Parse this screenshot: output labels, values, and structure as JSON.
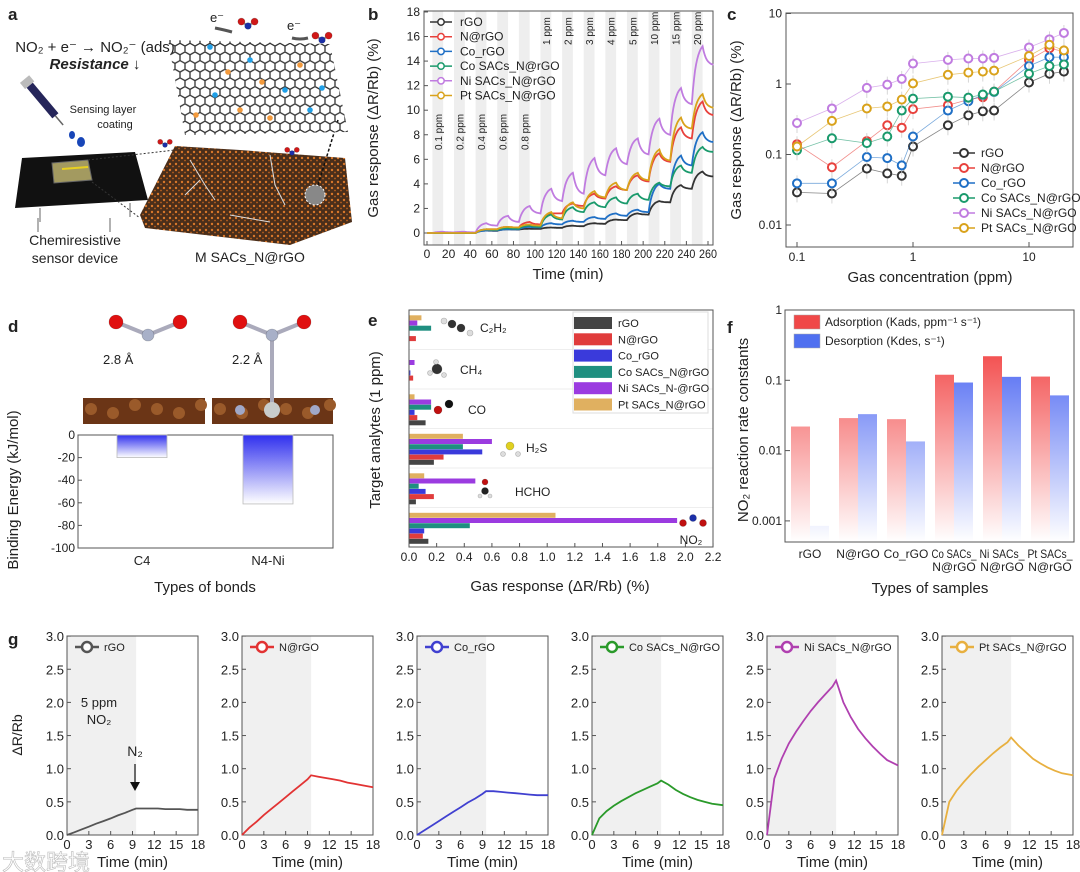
{
  "panel_labels": [
    "a",
    "b",
    "c",
    "d",
    "e",
    "f",
    "g"
  ],
  "watermark": "大数跨境",
  "illustration": {
    "equation": "NO₂ + e⁻ → NO₂⁻ (ads)",
    "resistance": "Resistance ↓",
    "syringe_label": [
      "Sensing layer",
      "coating"
    ],
    "device_label": [
      "Chemiresistive",
      "sensor device"
    ],
    "material_label": "M SACs_N@rGO",
    "electron": "e⁻"
  },
  "chart_data": [
    {
      "type": "line",
      "title": "",
      "xlabel": "Time (min)",
      "ylabel": "Gas response (ΔR/Rb) (%)",
      "xlim": [
        0,
        265
      ],
      "ylim": [
        -1,
        18
      ],
      "xticks": [
        "0",
        "20",
        "40",
        "60",
        "80",
        "100",
        "120",
        "140",
        "160",
        "180",
        "200",
        "220",
        "240",
        "260"
      ],
      "yticks": [
        "0",
        "2",
        "4",
        "6",
        "8",
        "10",
        "12",
        "14",
        "16",
        "18"
      ],
      "pulses": {
        "labels": [
          "0.1 ppm",
          "0.2 ppm",
          "0.4 ppm",
          "0.6 ppm",
          "0.8 ppm",
          "1 ppm",
          "2 ppm",
          "3 ppm",
          "4 ppm",
          "5 ppm",
          "10 ppm",
          "15 ppm",
          "20 ppm"
        ],
        "first_start_min": 5,
        "period_min": 20,
        "exposure_min": 10
      },
      "legend_position": "top-left",
      "series": [
        {
          "name": "rGO",
          "color": "#333333",
          "peak": [
            0,
            0.05,
            0.2,
            0.3,
            0.35,
            0.45,
            0.6,
            0.8,
            1.1,
            1.6,
            2.6,
            3.9,
            5.0
          ],
          "recovered": [
            0,
            0.04,
            0.18,
            0.28,
            0.33,
            0.42,
            0.55,
            0.75,
            1.05,
            1.5,
            2.5,
            3.6,
            4.6
          ]
        },
        {
          "name": "N@rGO",
          "color": "#e8413c",
          "peak": [
            0,
            0,
            0.3,
            0.5,
            0.9,
            1.6,
            2.4,
            3.2,
            3.8,
            4.7,
            6.5,
            8.6,
            10.7
          ],
          "recovered": [
            0,
            0,
            0.3,
            0.45,
            0.7,
            1.6,
            2.2,
            2.8,
            3.5,
            4.2,
            5.8,
            7.7,
            9.6
          ]
        },
        {
          "name": "Co_rGO",
          "color": "#1f6fc5",
          "peak": [
            0,
            0,
            0.2,
            0.3,
            0.5,
            0.8,
            1.0,
            1.3,
            1.6,
            1.9,
            4.0,
            6.3,
            8.2
          ],
          "recovered": [
            0,
            0,
            0.2,
            0.3,
            0.45,
            0.7,
            0.9,
            1.15,
            1.4,
            1.7,
            3.6,
            5.5,
            7.4
          ]
        },
        {
          "name": "Co SACs_N@rGO",
          "color": "#1a9a6c",
          "peak": [
            0,
            0,
            0.3,
            0.4,
            0.6,
            1.5,
            2.1,
            2.5,
            2.9,
            3.2,
            4.1,
            5.5,
            7.0
          ],
          "recovered": [
            0,
            0,
            0.25,
            0.35,
            0.5,
            1.1,
            1.7,
            2.1,
            2.4,
            2.7,
            3.8,
            4.9,
            6.6
          ]
        },
        {
          "name": "Ni SACs_N@rGO",
          "color": "#c07ce0",
          "peak": [
            0.1,
            0.1,
            0.8,
            1.4,
            2.2,
            3.6,
            4.9,
            6.1,
            6.9,
            7.7,
            9.3,
            11.8,
            15.2
          ],
          "recovered": [
            0.05,
            0.05,
            0.6,
            0.9,
            1.6,
            2.6,
            3.2,
            4.7,
            5.6,
            6.4,
            8.0,
            10.5,
            13.7
          ]
        },
        {
          "name": "Pt SACs_N@rGO",
          "color": "#d9a21b",
          "peak": [
            0,
            0,
            0.3,
            0.5,
            0.7,
            1.7,
            2.5,
            3.4,
            4.1,
            4.9,
            6.8,
            9.4,
            11.3
          ],
          "recovered": [
            0,
            0,
            0.3,
            0.45,
            0.6,
            1.2,
            2.0,
            2.9,
            3.5,
            4.3,
            5.9,
            8.5,
            10.2
          ]
        }
      ]
    },
    {
      "type": "scatter",
      "title": "",
      "xlabel": "Gas concentration (ppm)",
      "ylabel": "Gas response (ΔR/Rb) (%)",
      "xscale": "log",
      "yscale": "log",
      "xlim": [
        0.08,
        24
      ],
      "ylim": [
        0.005,
        10
      ],
      "xticks": [
        "0.1",
        "1",
        "10"
      ],
      "yticks": [
        "0.01",
        "0.1",
        "1",
        "10"
      ],
      "legend_position": "bottom-right",
      "x": [
        0.1,
        0.2,
        0.4,
        0.6,
        0.8,
        1,
        2,
        3,
        4,
        5,
        10,
        15,
        20
      ],
      "series": [
        {
          "name": "rGO",
          "color": "#333333",
          "values": [
            0.029,
            0.028,
            0.063,
            0.054,
            0.05,
            0.13,
            0.26,
            0.36,
            0.41,
            0.42,
            1.05,
            1.4,
            1.5
          ]
        },
        {
          "name": "N@rGO",
          "color": "#e8413c",
          "values": [
            0.14,
            0.066,
            0.155,
            0.26,
            0.24,
            0.44,
            0.5,
            0.6,
            0.65,
            0.78,
            2.2,
            3.2,
            2.9
          ]
        },
        {
          "name": "Co_rGO",
          "color": "#1f6fc5",
          "values": [
            0.039,
            0.039,
            0.092,
            0.089,
            0.07,
            0.18,
            0.42,
            0.57,
            0.7,
            0.77,
            1.8,
            2.4,
            2.4
          ]
        },
        {
          "name": "Co SACs_N@rGO",
          "color": "#1a9a6c",
          "values": [
            0.115,
            0.17,
            0.145,
            0.18,
            0.42,
            0.62,
            0.66,
            0.64,
            0.71,
            0.78,
            1.4,
            1.8,
            1.9
          ]
        },
        {
          "name": "Ni SACs_N@rGO",
          "color": "#c07ce0",
          "values": [
            0.28,
            0.45,
            0.88,
            0.98,
            1.18,
            1.95,
            2.2,
            2.3,
            2.3,
            2.35,
            3.3,
            4.3,
            5.3
          ]
        },
        {
          "name": "Pt SACs_N@rGO",
          "color": "#d9a21b",
          "values": [
            0.13,
            0.3,
            0.45,
            0.48,
            0.6,
            1.02,
            1.35,
            1.45,
            1.5,
            1.55,
            2.5,
            3.6,
            3.0
          ]
        }
      ]
    },
    {
      "type": "bar",
      "title": "",
      "xlabel": "Types of bonds",
      "ylabel": "Binding Energy (kJ/mol)",
      "ylim": [
        -100,
        0
      ],
      "yticks": [
        "0",
        "-20",
        "-40",
        "-60",
        "-80",
        "-100"
      ],
      "categories": [
        "C4",
        "N4-Ni"
      ],
      "values": [
        -20,
        -61
      ],
      "annotations": [
        "2.8 Å",
        "2.2 Å"
      ],
      "color": "#3a3aee"
    },
    {
      "type": "bar",
      "orientation": "horizontal",
      "title": "",
      "xlabel": "Gas response (ΔR/Rb) (%)",
      "ylabel": "Target analytes (1 ppm)",
      "xlim": [
        0,
        2.2
      ],
      "xticks": [
        "0.0",
        "0.2",
        "0.4",
        "0.6",
        "0.8",
        "1.0",
        "1.2",
        "1.4",
        "1.6",
        "1.8",
        "2.0",
        "2.2"
      ],
      "categories": [
        "C₂H₂",
        "CH₄",
        "CO",
        "H₂S",
        "HCHO",
        "NO₂"
      ],
      "legend_position": "top-right",
      "series": [
        {
          "name": "rGO",
          "color": "#444444",
          "values": [
            0,
            0,
            0.12,
            0.18,
            0.05,
            0.14
          ]
        },
        {
          "name": "N@rGO",
          "color": "#e03c3c",
          "values": [
            0.05,
            0.03,
            0.06,
            0.25,
            0.18,
            0.1
          ]
        },
        {
          "name": "Co_rGO",
          "color": "#3a3adb",
          "values": [
            0,
            0.01,
            0.04,
            0.53,
            0.12,
            0.11
          ]
        },
        {
          "name": "Co SACs_N@rGO",
          "color": "#1f8f80",
          "values": [
            0.16,
            0,
            0.16,
            0.39,
            0.07,
            0.44
          ]
        },
        {
          "name": "Ni SACs_N-@rGO",
          "color": "#9b3be0",
          "values": [
            0.06,
            0.04,
            0.16,
            0.6,
            0.48,
            1.94
          ]
        },
        {
          "name": "Pt SACs_N@rGO",
          "color": "#e0b060",
          "values": [
            0.09,
            0,
            0.04,
            0.39,
            0.11,
            1.06
          ]
        }
      ]
    },
    {
      "type": "bar",
      "title": "",
      "xlabel": "Types of samples",
      "ylabel": "NO₂ reaction rate constants",
      "yscale": "log",
      "ylim": [
        0.0005,
        1
      ],
      "yticks": [
        "0.001",
        "0.01",
        "0.1",
        "1"
      ],
      "legend_position": "top-left",
      "categories": [
        [
          "rGO"
        ],
        [
          "N@rGO"
        ],
        [
          "Co_rGO"
        ],
        [
          "Co SACs_",
          "N@rGO"
        ],
        [
          "Ni SACs_",
          "N@rGO"
        ],
        [
          "Pt SACs_",
          "N@rGO"
        ]
      ],
      "series": [
        {
          "name": "Adsorption (Kads, ppm⁻¹ s⁻¹)",
          "color": "#f03030",
          "values": [
            0.022,
            0.029,
            0.028,
            0.12,
            0.22,
            0.113
          ]
        },
        {
          "name": "Desorption (Kdes, s⁻¹)",
          "color": "#3050f0",
          "values": [
            0.00085,
            0.033,
            0.0135,
            0.093,
            0.112,
            0.061
          ]
        }
      ]
    },
    {
      "type": "line",
      "title": "",
      "xlabel": "Time (min)",
      "ylabel": "ΔR/Rb",
      "xlim": [
        0,
        18
      ],
      "ylim": [
        0,
        3
      ],
      "xticks": [
        "0",
        "3",
        "6",
        "9",
        "12",
        "15",
        "18"
      ],
      "yticks": [
        "0.0",
        "0.5",
        "1.0",
        "1.5",
        "2.0",
        "2.5",
        "3.0"
      ],
      "exposure_end_min": 9.5,
      "annotations": {
        "gas": "5 ppm",
        "gas_name": "NO₂",
        "purge": "N₂"
      },
      "t": [
        0,
        1,
        2,
        3,
        4,
        5,
        6,
        7,
        8,
        9,
        9.5,
        10.5,
        11.5,
        12.5,
        13.5,
        14.5,
        15.5,
        16.5,
        18
      ],
      "panels": [
        {
          "name": "rGO",
          "color": "#555555",
          "values": [
            0,
            0.04,
            0.085,
            0.125,
            0.17,
            0.21,
            0.25,
            0.295,
            0.335,
            0.38,
            0.4,
            0.4,
            0.4,
            0.4,
            0.39,
            0.39,
            0.39,
            0.38,
            0.38
          ]
        },
        {
          "name": "N@rGO",
          "color": "#e23333",
          "values": [
            0,
            0.11,
            0.2,
            0.3,
            0.39,
            0.48,
            0.57,
            0.66,
            0.75,
            0.84,
            0.9,
            0.88,
            0.86,
            0.84,
            0.82,
            0.79,
            0.77,
            0.75,
            0.72
          ]
        },
        {
          "name": "Co_rGO",
          "color": "#4040d0",
          "values": [
            0,
            0.07,
            0.14,
            0.21,
            0.28,
            0.35,
            0.42,
            0.49,
            0.55,
            0.62,
            0.66,
            0.66,
            0.65,
            0.64,
            0.63,
            0.62,
            0.61,
            0.6,
            0.6
          ]
        },
        {
          "name": "Co SACs_N@rGO",
          "color": "#2a9a2a",
          "values": [
            0,
            0.25,
            0.36,
            0.44,
            0.51,
            0.57,
            0.63,
            0.68,
            0.73,
            0.78,
            0.82,
            0.76,
            0.68,
            0.62,
            0.57,
            0.53,
            0.5,
            0.47,
            0.45
          ]
        },
        {
          "name": "Ni SACs_N@rGO",
          "color": "#b040b0",
          "values": [
            0,
            0.85,
            1.15,
            1.38,
            1.56,
            1.72,
            1.87,
            2.0,
            2.12,
            2.24,
            2.33,
            2.0,
            1.78,
            1.6,
            1.46,
            1.34,
            1.23,
            1.13,
            1.05
          ]
        },
        {
          "name": "Pt SACs_N@rGO",
          "color": "#e8b040",
          "values": [
            0,
            0.5,
            0.67,
            0.8,
            0.92,
            1.03,
            1.13,
            1.23,
            1.32,
            1.4,
            1.47,
            1.35,
            1.25,
            1.15,
            1.08,
            1.02,
            0.97,
            0.93,
            0.9
          ]
        }
      ]
    }
  ]
}
